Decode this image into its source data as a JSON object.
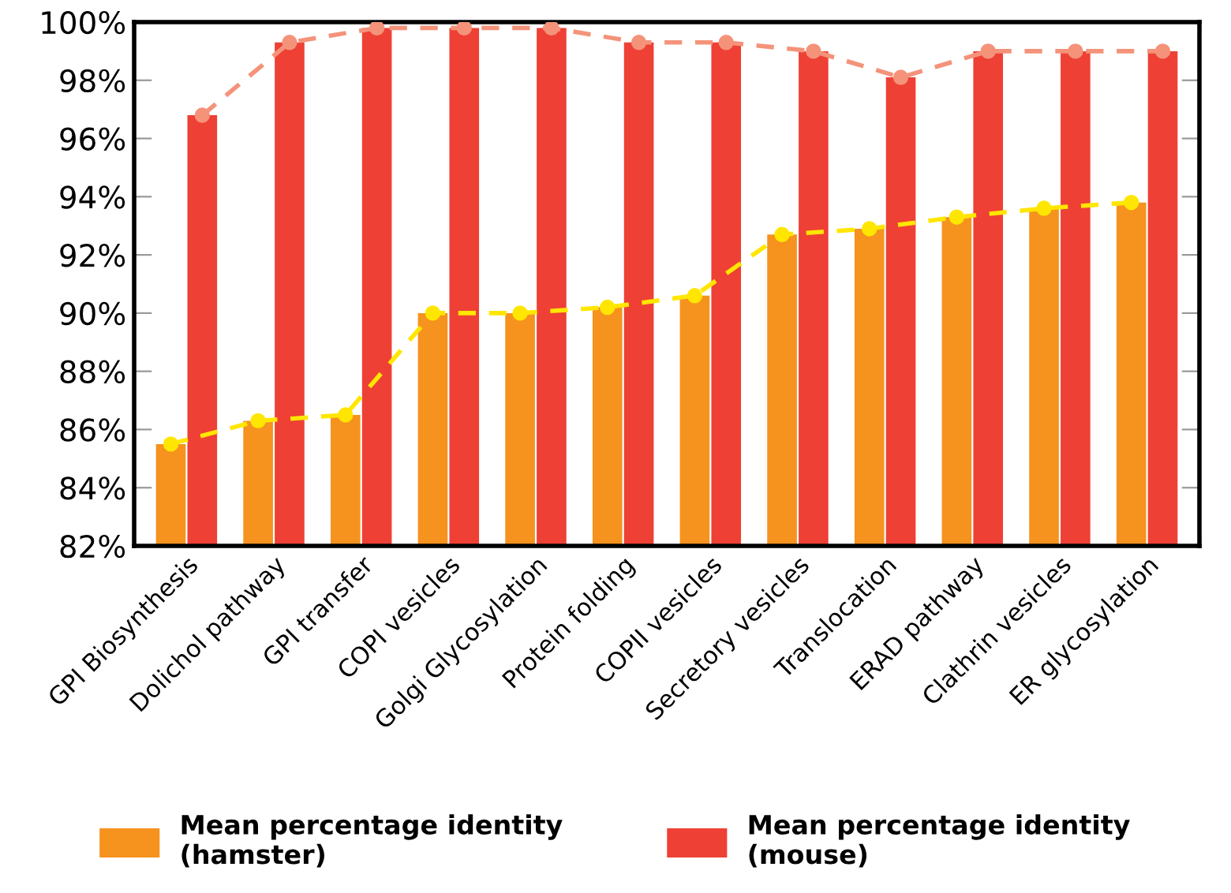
{
  "chart_data": {
    "type": "bar",
    "categories": [
      "GPI Biosynthesis",
      "Dolichol pathway",
      "GPI transfer",
      "COPI vesicles",
      "Golgi Glycosylation",
      "Protein folding",
      "COPII vesicles",
      "Secretory vesicles",
      "Translocation",
      "ERAD pathway",
      "Clathrin vesicles",
      "ER glycosylation"
    ],
    "series": [
      {
        "name": "Mean percentage identity\n(hamster)",
        "color": "#f6921e",
        "values": [
          85.5,
          86.3,
          86.5,
          90.0,
          90.0,
          90.2,
          90.6,
          92.7,
          92.9,
          93.3,
          93.6,
          93.8
        ]
      },
      {
        "name": "Mean percentage identity\n(mouse)",
        "color": "#ee4035",
        "values": [
          96.8,
          99.3,
          99.8,
          99.8,
          99.8,
          99.3,
          99.3,
          99.0,
          98.1,
          99.0,
          99.0,
          99.0
        ]
      },
      {
        "type": "line",
        "color": "#ffe600",
        "marker": "circle",
        "line_style": "dashed",
        "values": [
          85.5,
          86.3,
          86.5,
          90.0,
          90.0,
          90.2,
          90.6,
          92.7,
          92.9,
          93.3,
          93.6,
          93.8
        ]
      },
      {
        "type": "line",
        "color": "#f4937a",
        "marker": "circle",
        "line_style": "dashed",
        "values": [
          96.8,
          99.3,
          99.8,
          99.8,
          99.8,
          99.3,
          99.3,
          99.0,
          98.1,
          99.0,
          99.0,
          99.0
        ]
      }
    ],
    "ylim": [
      82,
      100
    ],
    "yticks": [
      {
        "value": 82,
        "label": "82%"
      },
      {
        "value": 84,
        "label": "84%"
      },
      {
        "value": 86,
        "label": "86%"
      },
      {
        "value": 88,
        "label": "88%"
      },
      {
        "value": 90,
        "label": "90%"
      },
      {
        "value": 92,
        "label": "92%"
      },
      {
        "value": 94,
        "label": "94%"
      },
      {
        "value": 96,
        "label": "96%"
      },
      {
        "value": 98,
        "label": "98%"
      },
      {
        "value": 100,
        "label": "100%"
      }
    ],
    "grid": false,
    "legend": "bottom"
  }
}
